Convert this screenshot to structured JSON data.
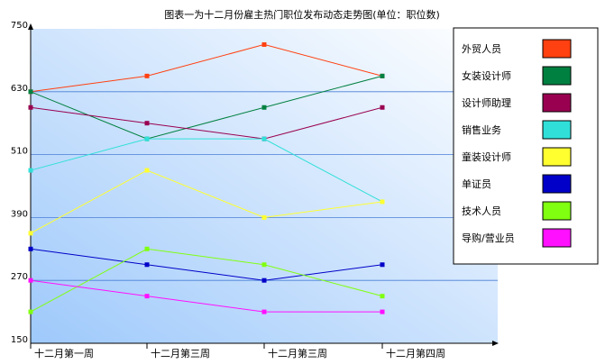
{
  "chart_data": {
    "type": "line",
    "title": "图表一为十二月份雇主热门职位发布动态走势图(单位：职位数)",
    "categories": [
      "十二月第一周",
      "十二月第三周",
      "十二月第三周",
      "十二月第四周"
    ],
    "ylim": [
      150,
      750
    ],
    "yticks": [
      150,
      270,
      390,
      510,
      630,
      750
    ],
    "grid": true,
    "legend_position": "right",
    "series": [
      {
        "name": "外贸人员",
        "color": "#ff4010",
        "values": [
          630,
          660,
          720,
          660
        ]
      },
      {
        "name": "女装设计师",
        "color": "#008040",
        "values": [
          630,
          540,
          600,
          660
        ]
      },
      {
        "name": "设计师助理",
        "color": "#990050",
        "values": [
          600,
          570,
          540,
          600
        ]
      },
      {
        "name": "销售业务",
        "color": "#30e0d8",
        "values": [
          480,
          540,
          540,
          420
        ]
      },
      {
        "name": "童装设计师",
        "color": "#ffff30",
        "values": [
          360,
          480,
          390,
          420
        ]
      },
      {
        "name": "单证员",
        "color": "#0000c8",
        "values": [
          330,
          300,
          270,
          300
        ]
      },
      {
        "name": "技术人员",
        "color": "#80ff10",
        "values": [
          210,
          330,
          300,
          240
        ]
      },
      {
        "name": "导购/营业员",
        "color": "#ff10ff",
        "values": [
          270,
          240,
          210,
          210
        ]
      }
    ]
  }
}
